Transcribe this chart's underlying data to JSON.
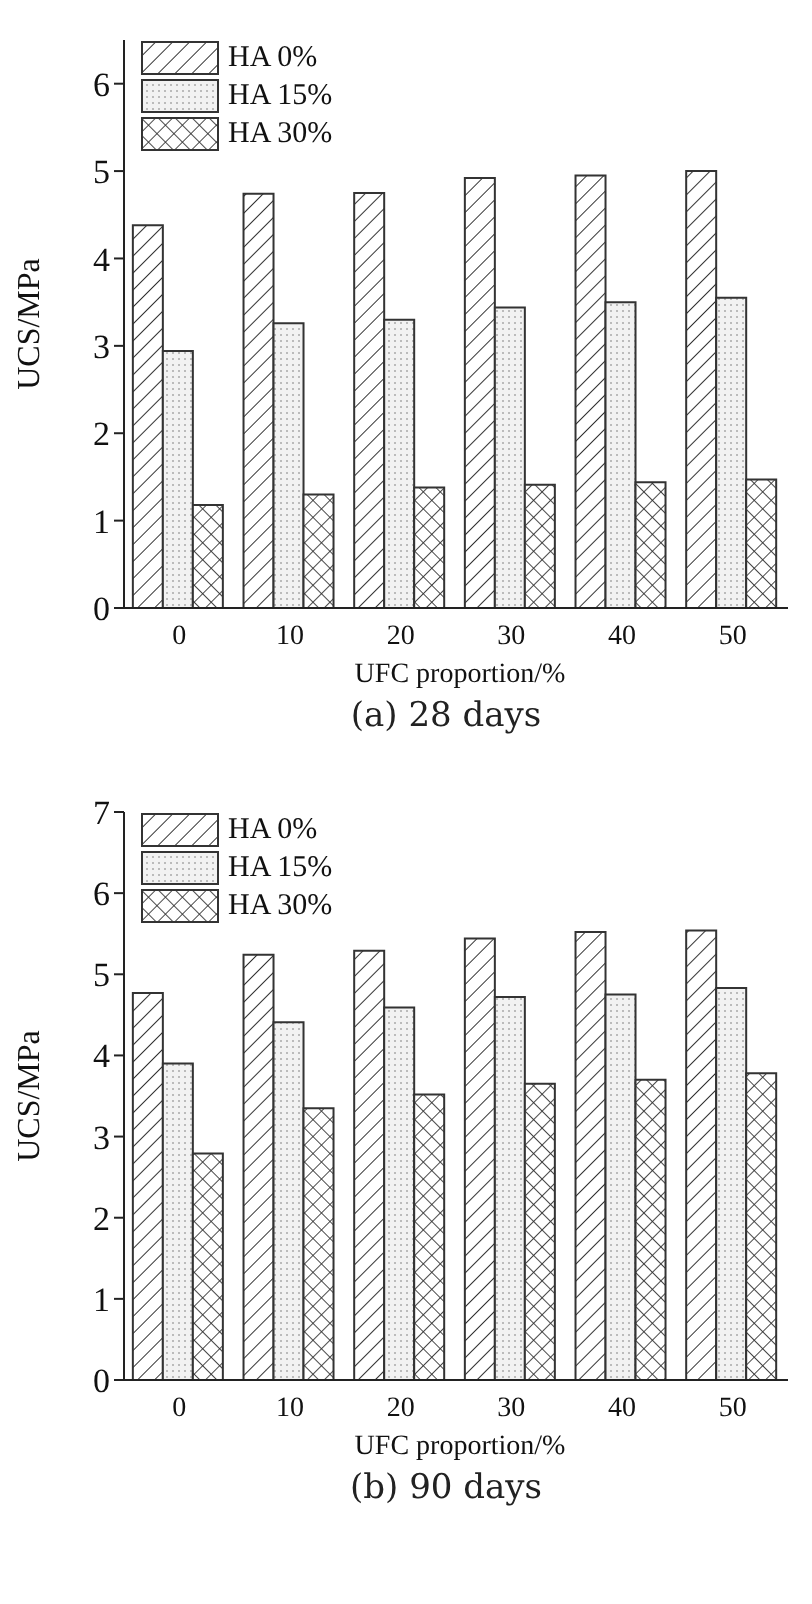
{
  "chart_data": [
    {
      "type": "bar",
      "xlabel": "UFC proportion/%",
      "ylabel": "UCS/MPa",
      "categories": [
        "0",
        "10",
        "20",
        "30",
        "40",
        "50"
      ],
      "series": [
        {
          "name": "HA 0%",
          "color": "#333333",
          "values": [
            4.38,
            4.74,
            4.75,
            4.92,
            4.95,
            5.0
          ]
        },
        {
          "name": "HA 15%",
          "color": "#333333",
          "values": [
            2.94,
            3.26,
            3.3,
            3.44,
            3.5,
            3.55
          ]
        },
        {
          "name": "HA 30%",
          "color": "#333333",
          "values": [
            1.18,
            1.3,
            1.38,
            1.41,
            1.44,
            1.47
          ]
        }
      ],
      "ylim": [
        0,
        6.5
      ],
      "yticks": [
        0,
        1,
        2,
        3,
        4,
        5,
        6
      ],
      "grid": false,
      "legend": "top left",
      "annotations": [
        "(a) 28 days"
      ]
    },
    {
      "type": "bar",
      "xlabel": "UFC proportion/%",
      "ylabel": "UCS/MPa",
      "categories": [
        "0",
        "10",
        "20",
        "30",
        "40",
        "50"
      ],
      "series": [
        {
          "name": "HA 0%",
          "color": "#333333",
          "values": [
            4.77,
            5.24,
            5.29,
            5.44,
            5.52,
            5.54
          ]
        },
        {
          "name": "HA 15%",
          "color": "#333333",
          "values": [
            3.9,
            4.41,
            4.59,
            4.72,
            4.75,
            4.83
          ]
        },
        {
          "name": "HA 30%",
          "color": "#333333",
          "values": [
            2.79,
            3.35,
            3.52,
            3.65,
            3.7,
            3.78
          ]
        }
      ],
      "ylim": [
        0,
        7
      ],
      "yticks": [
        0,
        1,
        2,
        3,
        4,
        5,
        6,
        7
      ],
      "grid": false,
      "legend": "top left",
      "annotations": [
        "(b) 90 days"
      ]
    }
  ]
}
